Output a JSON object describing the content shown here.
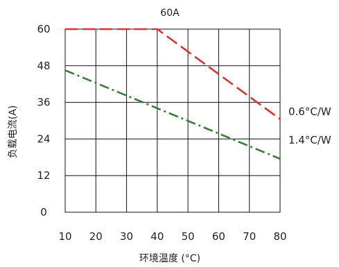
{
  "chart_data": {
    "type": "line",
    "title": "60A",
    "xlabel": "环境温度 (°C)",
    "ylabel": "负载电流(A)",
    "xlim": [
      10,
      80
    ],
    "ylim": [
      0,
      60
    ],
    "xticks": [
      "10",
      "20",
      "30",
      "40",
      "50",
      "60",
      "70",
      "80"
    ],
    "yticks": [
      "0",
      "12",
      "24",
      "36",
      "48",
      "60"
    ],
    "grid": true,
    "series": [
      {
        "name": "0.6°C/W",
        "color": "#e03030",
        "line_style": "dashed",
        "x": [
          10,
          40,
          80
        ],
        "y": [
          60,
          60,
          30.5
        ]
      },
      {
        "name": "1.4°C/W",
        "color": "#3a7a38",
        "line_style": "dash-dot",
        "x": [
          10,
          80
        ],
        "y": [
          46.5,
          17.5
        ]
      }
    ]
  }
}
